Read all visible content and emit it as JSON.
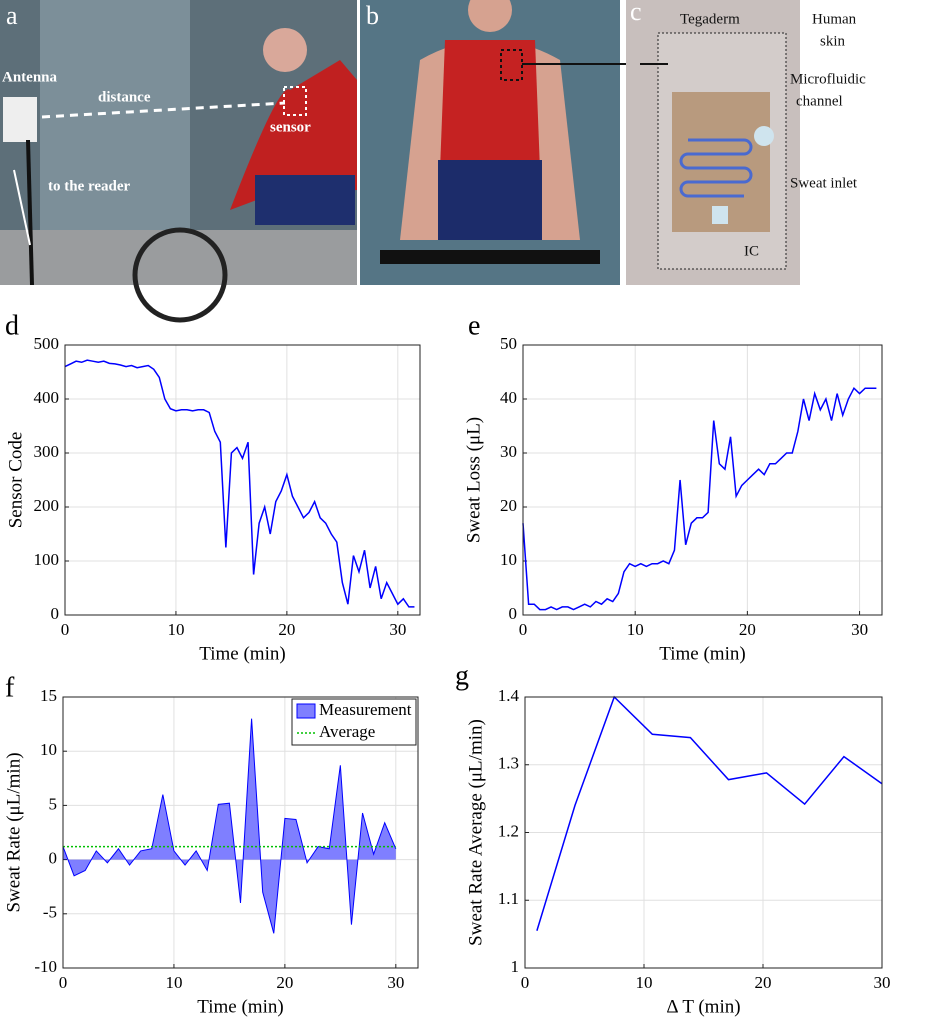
{
  "photos": [
    {
      "label": "a",
      "annotations": [
        "Antenna",
        "distance",
        "sensor",
        "to the reader"
      ]
    },
    {
      "label": "b"
    },
    {
      "label": "c",
      "annotations": [
        "Tegaderm",
        "Human",
        "skin",
        "Microfluidic",
        "channel",
        "Sweat inlet",
        "IC"
      ]
    }
  ],
  "chart_data": [
    {
      "type": "line",
      "panel": "d",
      "xlabel": "Time (min)",
      "ylabel": "Sensor Code",
      "color": "#0000ff",
      "grid": true,
      "x": [
        0,
        0.5,
        1,
        1.5,
        2,
        2.5,
        3,
        3.5,
        4,
        4.5,
        5,
        5.5,
        6,
        6.5,
        7,
        7.5,
        8,
        8.5,
        9,
        9.5,
        10,
        10.5,
        11,
        11.5,
        12,
        12.5,
        13,
        13.5,
        14,
        14.5,
        15,
        15.5,
        16,
        16.5,
        17,
        17.5,
        18,
        18.5,
        19,
        19.5,
        20,
        20.5,
        21,
        21.5,
        22,
        22.5,
        23,
        23.5,
        24,
        24.5,
        25,
        25.5,
        26,
        26.5,
        27,
        27.5,
        28,
        28.5,
        29,
        29.5,
        30,
        30.5,
        31,
        31.5
      ],
      "values": [
        460,
        465,
        470,
        468,
        472,
        470,
        468,
        470,
        466,
        465,
        463,
        460,
        462,
        458,
        460,
        462,
        455,
        440,
        400,
        382,
        378,
        380,
        380,
        378,
        380,
        380,
        375,
        340,
        320,
        125,
        300,
        310,
        290,
        320,
        75,
        170,
        200,
        150,
        210,
        230,
        260,
        220,
        200,
        180,
        190,
        210,
        180,
        170,
        150,
        135,
        60,
        20,
        110,
        80,
        120,
        50,
        90,
        30,
        60,
        40,
        20,
        30,
        15,
        15
      ],
      "xlim": [
        0,
        32
      ],
      "xticks": [
        0,
        10,
        20,
        30
      ],
      "ylim": [
        0,
        500
      ],
      "yticks": [
        0,
        100,
        200,
        300,
        400,
        500
      ]
    },
    {
      "type": "line",
      "panel": "e",
      "xlabel": "Time (min)",
      "ylabel": "Sweat Loss (μL)",
      "color": "#0000ff",
      "grid": true,
      "x": [
        0,
        0.5,
        1,
        1.5,
        2,
        2.5,
        3,
        3.5,
        4,
        4.5,
        5,
        5.5,
        6,
        6.5,
        7,
        7.5,
        8,
        8.5,
        9,
        9.5,
        10,
        10.5,
        11,
        11.5,
        12,
        12.5,
        13,
        13.5,
        14,
        14.5,
        15,
        15.5,
        16,
        16.5,
        17,
        17.5,
        18,
        18.5,
        19,
        19.5,
        20,
        20.5,
        21,
        21.5,
        22,
        22.5,
        23,
        23.5,
        24,
        24.5,
        25,
        25.5,
        26,
        26.5,
        27,
        27.5,
        28,
        28.5,
        29,
        29.5,
        30,
        30.5,
        31,
        31.5
      ],
      "values": [
        17,
        2,
        2,
        1,
        1,
        1.5,
        1,
        1.5,
        1.5,
        1,
        1.5,
        2,
        1.5,
        2.5,
        2,
        3,
        2.5,
        4,
        8,
        9.5,
        9,
        9.5,
        9,
        9.5,
        9.5,
        10,
        9.5,
        12,
        25,
        13,
        17,
        18,
        18,
        19,
        36,
        28,
        27,
        33,
        22,
        24,
        25,
        26,
        27,
        26,
        28,
        28,
        29,
        30,
        30,
        34,
        40,
        36,
        41,
        38,
        40,
        36,
        41,
        37,
        40,
        42,
        41,
        42,
        42,
        42
      ],
      "xlim": [
        0,
        32
      ],
      "xticks": [
        0,
        10,
        20,
        30
      ],
      "ylim": [
        0,
        50
      ],
      "yticks": [
        0,
        10,
        20,
        30,
        40,
        50
      ]
    },
    {
      "type": "area",
      "panel": "f",
      "xlabel": "Time (min)",
      "ylabel": "Sweat Rate (μL/min)",
      "grid": true,
      "legend": "upper right",
      "x": [
        0,
        1,
        2,
        3,
        4,
        5,
        6,
        7,
        8,
        9,
        10,
        11,
        12,
        13,
        14,
        15,
        16,
        17,
        18,
        19,
        20,
        21,
        22,
        23,
        24,
        25,
        26,
        27,
        28,
        29,
        30
      ],
      "series": [
        {
          "name": "Measurement",
          "color": "#0000ff",
          "values": [
            1.2,
            -1.5,
            -1,
            0.8,
            -0.3,
            1,
            -0.5,
            0.8,
            1,
            6,
            0.8,
            -0.5,
            0.8,
            -1,
            5.1,
            5.2,
            -4,
            13,
            -3,
            -6.8,
            3.8,
            3.7,
            -0.3,
            1.2,
            1,
            8.7,
            -6,
            4.3,
            0.5,
            3.4,
            1
          ]
        },
        {
          "name": "Average",
          "color": "#00c000",
          "value": 1.2
        }
      ],
      "xlim": [
        0,
        32
      ],
      "xticks": [
        0,
        10,
        20,
        30
      ],
      "ylim": [
        -10,
        15
      ],
      "yticks": [
        -10,
        -5,
        0,
        5,
        10,
        15
      ]
    },
    {
      "type": "line",
      "panel": "g",
      "xlabel": "Δ T (min)",
      "ylabel": "Sweat Rate Average (μL/min)",
      "color": "#0000ff",
      "grid": true,
      "x": [
        1,
        4.2,
        7.5,
        10.7,
        13.9,
        17.1,
        20.3,
        23.5,
        26.8,
        30
      ],
      "values": [
        1.055,
        1.24,
        1.4,
        1.345,
        1.34,
        1.278,
        1.288,
        1.242,
        1.312,
        1.272
      ],
      "xlim": [
        0,
        30
      ],
      "xticks": [
        0,
        10,
        20,
        30
      ],
      "ylim": [
        1,
        1.4
      ],
      "yticks": [
        1,
        1.1,
        1.2,
        1.3,
        1.4
      ]
    }
  ]
}
